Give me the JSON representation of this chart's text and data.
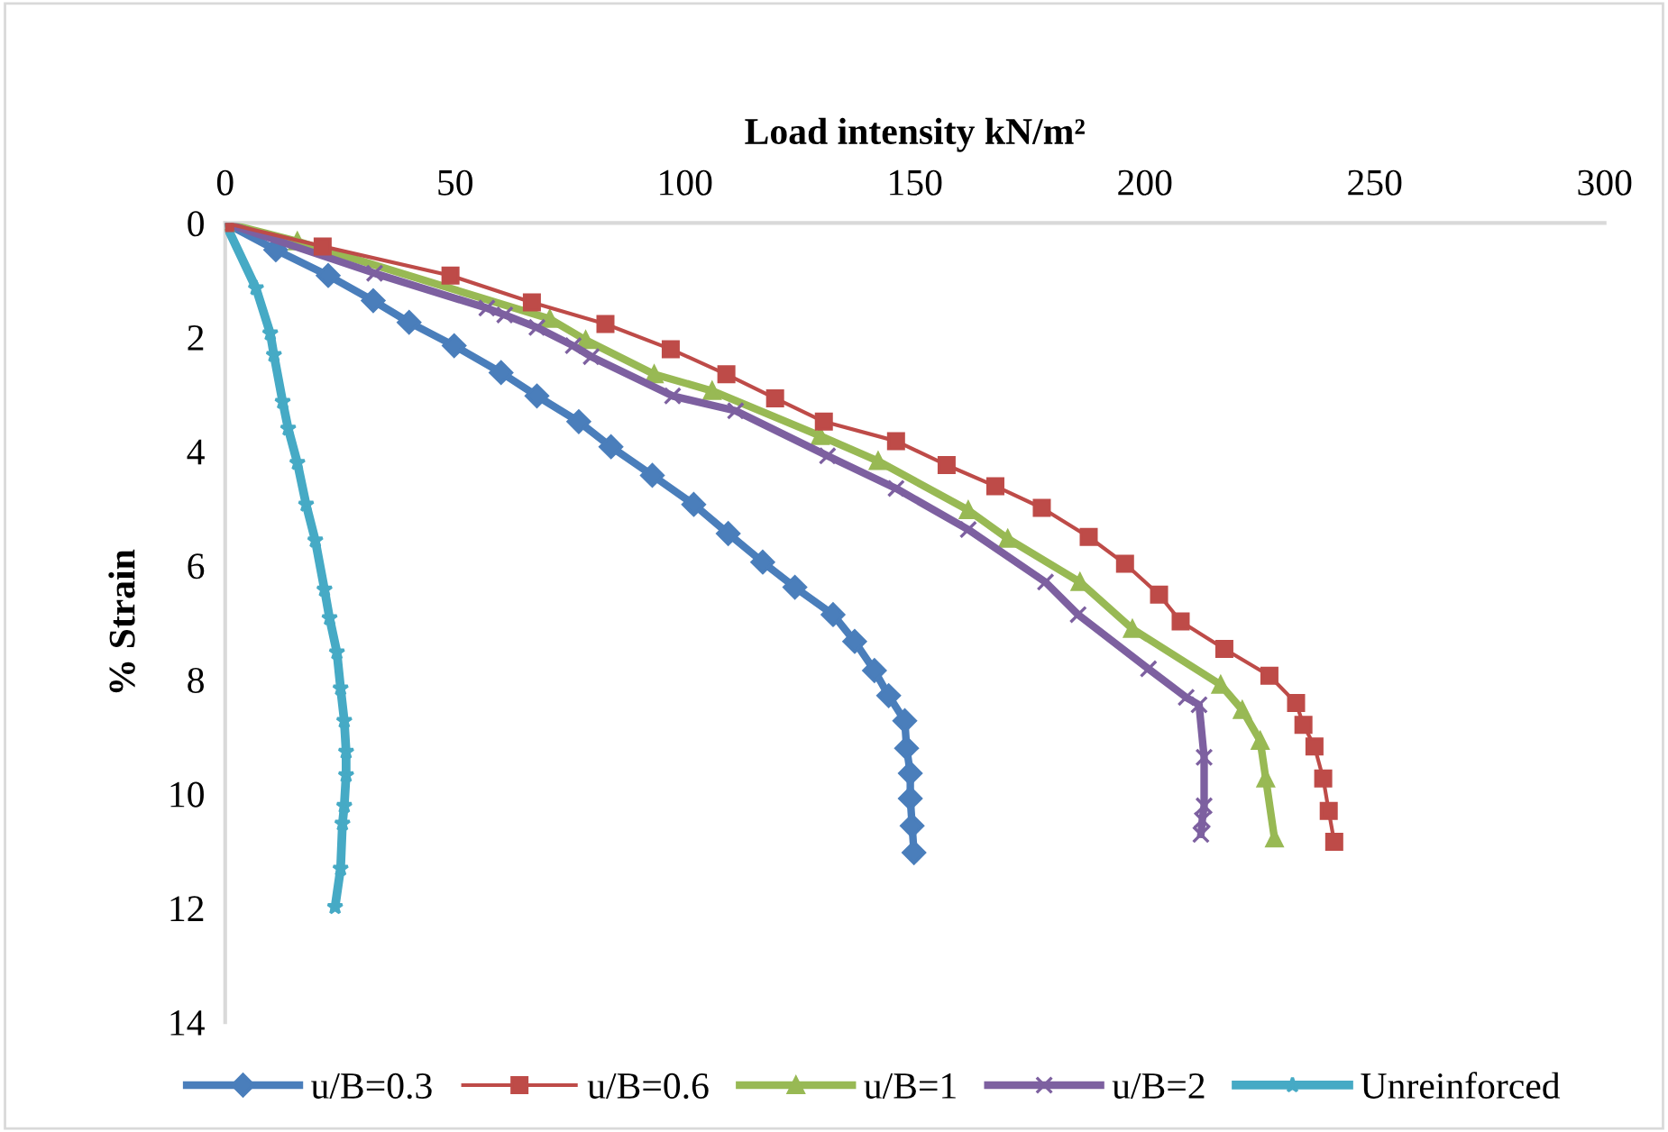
{
  "chart_data": {
    "type": "line",
    "xlabel": "Load intensity kN/m²",
    "ylabel": "% Strain",
    "xlim": [
      0,
      300
    ],
    "xticks": [
      0,
      50,
      100,
      150,
      200,
      250,
      300
    ],
    "ylim": [
      14,
      0
    ],
    "yticks": [
      0,
      2,
      4,
      6,
      8,
      10,
      12,
      14
    ],
    "legend": "bottom",
    "grid": false,
    "series": [
      {
        "name": "u/B=0.3",
        "color": "#4a7ebb",
        "marker": "diamond",
        "x": [
          0,
          11.0,
          22.4,
          32.2,
          40.0,
          49.8,
          60.0,
          67.8,
          76.9,
          83.9,
          92.9,
          101.9,
          109.4,
          116.9,
          123.9,
          132.2,
          136.9,
          141.2,
          144.3,
          147.8,
          148.2,
          149.0,
          149.0,
          149.4,
          149.8
        ],
        "values": [
          0,
          0.47,
          0.92,
          1.36,
          1.74,
          2.15,
          2.62,
          3.03,
          3.48,
          3.92,
          4.42,
          4.93,
          5.44,
          5.94,
          6.38,
          6.86,
          7.33,
          7.84,
          8.28,
          8.72,
          9.2,
          9.64,
          10.08,
          10.56,
          11.03
        ]
      },
      {
        "name": "u/B=0.6",
        "color": "#be4b48",
        "marker": "square",
        "x": [
          0,
          21.2,
          49.0,
          66.7,
          82.7,
          96.9,
          109.0,
          119.6,
          130.2,
          145.9,
          156.9,
          167.5,
          177.6,
          187.8,
          195.7,
          203.1,
          207.8,
          217.3,
          227.1,
          232.9,
          234.5,
          236.9,
          238.8,
          240.0,
          241.2
        ],
        "values": [
          0,
          0.41,
          0.92,
          1.39,
          1.77,
          2.21,
          2.65,
          3.07,
          3.48,
          3.82,
          4.24,
          4.61,
          4.99,
          5.5,
          5.97,
          6.51,
          6.98,
          7.46,
          7.93,
          8.41,
          8.79,
          9.17,
          9.73,
          10.3,
          10.84
        ]
      },
      {
        "name": "u/B=1",
        "color": "#98b954",
        "marker": "triangle",
        "x": [
          0,
          15.7,
          70.6,
          78.4,
          93.3,
          105.9,
          129.4,
          142.0,
          161.6,
          170.2,
          185.9,
          197.3,
          216.5,
          221.2,
          225.1,
          226.3,
          228.2
        ],
        "values": [
          0,
          0.32,
          1.68,
          2.05,
          2.65,
          2.94,
          3.73,
          4.17,
          5.03,
          5.53,
          6.29,
          7.11,
          8.09,
          8.53,
          9.07,
          9.73,
          10.78
        ]
      },
      {
        "name": "u/B=2",
        "color": "#7d60a0",
        "marker": "cross",
        "x": [
          0,
          32.5,
          56.9,
          60.8,
          67.8,
          75.7,
          79.6,
          97.3,
          111.0,
          131.0,
          145.9,
          161.6,
          178.4,
          185.5,
          200.8,
          209.0,
          211.8,
          212.9,
          212.9,
          212.5,
          212.2
        ],
        "values": [
          0,
          0.88,
          1.49,
          1.61,
          1.83,
          2.15,
          2.34,
          3.03,
          3.29,
          4.08,
          4.65,
          5.37,
          6.29,
          6.86,
          7.81,
          8.31,
          8.44,
          9.36,
          10.21,
          10.46,
          10.71
        ]
      },
      {
        "name": "Unreinforced",
        "color": "#46aac5",
        "marker": "star",
        "x": [
          0,
          6.7,
          9.8,
          10.6,
          12.5,
          13.7,
          15.7,
          17.6,
          19.6,
          21.6,
          22.7,
          24.3,
          25.1,
          25.9,
          26.3,
          26.3,
          25.9,
          25.5,
          25.1,
          23.9
        ],
        "values": [
          0,
          1.14,
          1.93,
          2.31,
          3.13,
          3.6,
          4.2,
          4.93,
          5.56,
          6.42,
          6.92,
          7.52,
          8.15,
          8.72,
          9.26,
          9.67,
          10.21,
          10.52,
          11.31,
          11.98
        ]
      }
    ]
  }
}
